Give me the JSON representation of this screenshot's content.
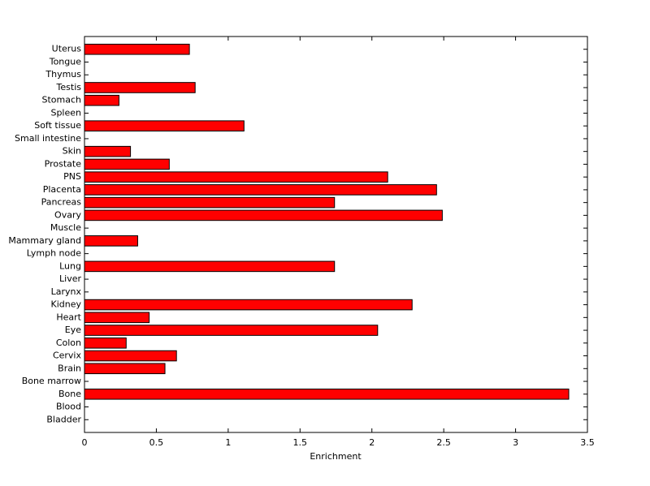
{
  "chart_data": {
    "type": "barh",
    "xlabel": "Enrichment",
    "categories": [
      "Bladder",
      "Blood",
      "Bone",
      "Bone marrow",
      "Brain",
      "Cervix",
      "Colon",
      "Eye",
      "Heart",
      "Kidney",
      "Larynx",
      "Liver",
      "Lung",
      "Lymph node",
      "Mammary gland",
      "Muscle",
      "Ovary",
      "Pancreas",
      "Placenta",
      "PNS",
      "Prostate",
      "Skin",
      "Small intestine",
      "Soft tissue",
      "Spleen",
      "Stomach",
      "Testis",
      "Thymus",
      "Tongue",
      "Uterus"
    ],
    "values": [
      0,
      0,
      3.37,
      0,
      0.56,
      0.64,
      0.29,
      2.04,
      0.45,
      2.28,
      0,
      0,
      1.74,
      0,
      0.37,
      0,
      2.49,
      1.74,
      2.45,
      2.11,
      0.59,
      0.32,
      0,
      1.11,
      0,
      0.24,
      0.77,
      0,
      0,
      0.73
    ],
    "color": "#ff0000",
    "xlim": [
      0,
      3.5
    ],
    "xticks": [
      0,
      0.5,
      1,
      1.5,
      2,
      2.5,
      3,
      3.5
    ],
    "grid": false
  }
}
